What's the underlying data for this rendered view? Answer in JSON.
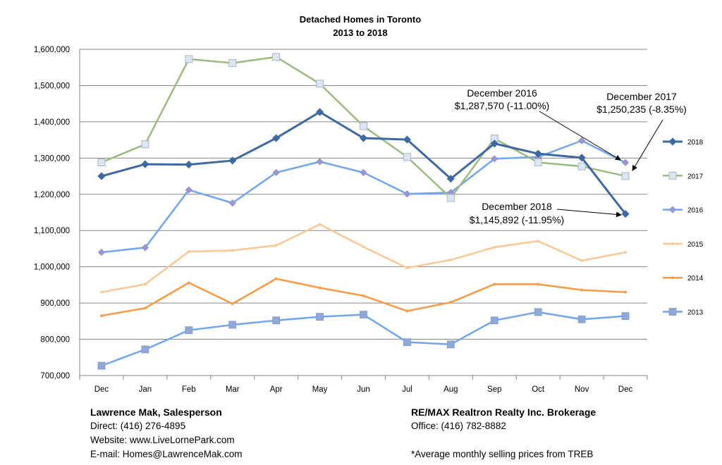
{
  "chart_data": {
    "type": "line",
    "title": "Detached Homes in Toronto",
    "subtitle": "2013 to 2018",
    "categories": [
      "Dec",
      "Jan",
      "Feb",
      "Mar",
      "Apr",
      "May",
      "Jun",
      "Jul",
      "Aug",
      "Sep",
      "Oct",
      "Nov",
      "Dec"
    ],
    "ylim": [
      700000,
      1600000
    ],
    "yticks": [
      700000,
      800000,
      900000,
      1000000,
      1100000,
      1200000,
      1300000,
      1400000,
      1500000,
      1600000
    ],
    "ytick_labels": [
      "700,000",
      "800,000",
      "900,000",
      "1,000,000",
      "1,100,000",
      "1,200,000",
      "1,300,000",
      "1,400,000",
      "1,500,000",
      "1,600,000"
    ],
    "grid": true,
    "legend_position": "right",
    "series": [
      {
        "name": "2018",
        "color": "#3E68A0",
        "marker": "diamond",
        "values": [
          1250000,
          1283000,
          1282000,
          1293000,
          1355000,
          1427000,
          1355000,
          1351000,
          1243000,
          1340000,
          1312000,
          1301000,
          1145892
        ]
      },
      {
        "name": "2017",
        "color": "#9BBB7E",
        "marker": "square-open",
        "values": [
          1288000,
          1338000,
          1573000,
          1562000,
          1579000,
          1505000,
          1388000,
          1303000,
          1190000,
          1354000,
          1288000,
          1277000,
          1250235
        ]
      },
      {
        "name": "2016",
        "color": "#6FA6EC",
        "marker": "diamond-purple",
        "values": [
          1040000,
          1053000,
          1212000,
          1176000,
          1260000,
          1290000,
          1260000,
          1201000,
          1205000,
          1298000,
          1303000,
          1348000,
          1287570
        ]
      },
      {
        "name": "2015",
        "color": "#FAC894",
        "marker": "small",
        "values": [
          930000,
          952000,
          1042000,
          1045000,
          1059000,
          1117000,
          1055000,
          997000,
          1019000,
          1054000,
          1071000,
          1017000,
          1040000
        ]
      },
      {
        "name": "2014",
        "color": "#F79A43",
        "marker": "small",
        "values": [
          865000,
          886000,
          956000,
          898000,
          967000,
          942000,
          920000,
          878000,
          902000,
          952000,
          952000,
          936000,
          930000
        ]
      },
      {
        "name": "2013",
        "color": "#6FA6EC",
        "marker": "square",
        "values": [
          727000,
          772000,
          825000,
          840000,
          852000,
          862000,
          868000,
          792000,
          786000,
          852000,
          875000,
          855000,
          864000
        ]
      }
    ],
    "annotations": [
      {
        "line1": "December 2016",
        "line2": "$1,287,570 (-11.00%)",
        "x": 12,
        "y": 1287570
      },
      {
        "line1": "December 2017",
        "line2": "$1,250,235 (-8.35%)",
        "x": 12,
        "y": 1250235
      },
      {
        "line1": "December 2018",
        "line2": "$1,145,892 (-11.95%)",
        "x": 12,
        "y": 1145892
      }
    ]
  },
  "footer": {
    "left": {
      "name": "Lawrence Mak, Salesperson",
      "direct": "Direct:  (416) 276-4895",
      "website": "Website:  www.LiveLornePark.com",
      "email": "E-mail:  Homes@LawrenceMak.com"
    },
    "right": {
      "name": "RE/MAX Realtron Realty Inc. Brokerage",
      "office": "Office: (416) 782-8882",
      "note": "*Average monthly selling prices from TREB"
    }
  }
}
